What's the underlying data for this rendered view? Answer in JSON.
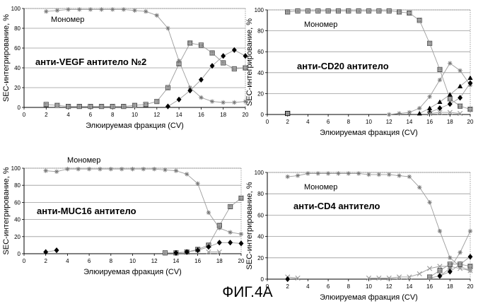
{
  "figure_caption": "ФИГ.4А",
  "chart_data": [
    {
      "type": "line",
      "title": "анти-VEGF антитело №2",
      "xlabel": "Элюируемая фракция (CV)",
      "ylabel": "SEC-интегрирование, %",
      "xlim": [
        0,
        20
      ],
      "ylim": [
        0,
        100
      ],
      "xticks": [
        0,
        2,
        4,
        6,
        8,
        10,
        12,
        14,
        16,
        18,
        20
      ],
      "yticks": [
        0,
        20,
        40,
        60,
        80,
        100
      ],
      "annotations": [
        "Мономер"
      ],
      "grid": true,
      "series": [
        {
          "x": [
            2,
            3,
            4,
            5,
            6,
            7,
            8,
            9,
            10,
            11,
            12,
            13,
            14,
            15,
            16,
            17,
            18,
            19,
            20
          ],
          "y": [
            97,
            98,
            99,
            99,
            99,
            99,
            99,
            99,
            98,
            97,
            93,
            80,
            47,
            20,
            10,
            6,
            5,
            5,
            6
          ],
          "color": "#777777",
          "marker": "star"
        },
        {
          "x": [
            2,
            3,
            4,
            5,
            6,
            7,
            8,
            9,
            10,
            11,
            12,
            13,
            14,
            15,
            16,
            17,
            18,
            19,
            20
          ],
          "y": [
            3,
            2,
            1,
            1,
            1,
            1,
            1,
            1,
            2,
            3,
            6,
            20,
            44,
            65,
            63,
            55,
            45,
            39,
            40
          ],
          "color": "#555555",
          "marker": "hatch"
        },
        {
          "x": [
            13,
            14,
            15,
            16,
            17,
            18,
            19,
            20
          ],
          "y": [
            1,
            8,
            17,
            28,
            42,
            52,
            58,
            52
          ],
          "color": "#000000",
          "marker": "diamond"
        }
      ]
    },
    {
      "type": "line",
      "title": "анти-CD20 антитело",
      "xlabel": "Элюируемая фракция (CV)",
      "ylabel": "SEC-интегрирование, %",
      "xlim": [
        0,
        20
      ],
      "ylim": [
        0,
        100
      ],
      "xticks": [
        0,
        2,
        4,
        6,
        8,
        10,
        12,
        14,
        16,
        18,
        20
      ],
      "yticks": [
        0,
        20,
        40,
        60,
        80,
        100
      ],
      "annotations": [
        "Мономер"
      ],
      "grid": true,
      "series": [
        {
          "x": [
            2,
            3,
            4,
            5,
            6,
            7,
            8,
            9,
            10,
            11,
            12,
            13,
            14,
            15,
            16,
            17,
            18,
            19,
            20
          ],
          "y": [
            98,
            99,
            99,
            99,
            99,
            99,
            99,
            99,
            99,
            99,
            99,
            98,
            97,
            90,
            68,
            43,
            15,
            8,
            5
          ],
          "color": "#555555",
          "marker": "hatch"
        },
        {
          "x": [
            12,
            13,
            14,
            15,
            16,
            17,
            18,
            19,
            20
          ],
          "y": [
            0,
            1,
            2,
            6,
            17,
            33,
            49,
            42,
            28
          ],
          "color": "#777777",
          "marker": "star"
        },
        {
          "x": [
            15,
            16,
            17,
            18,
            19,
            20
          ],
          "y": [
            1,
            6,
            12,
            19,
            27,
            35
          ],
          "color": "#000000",
          "marker": "triangle"
        },
        {
          "x": [
            16,
            17,
            18,
            19,
            20
          ],
          "y": [
            2,
            6,
            10,
            16,
            30
          ],
          "color": "#000000",
          "marker": "diamond"
        },
        {
          "x": [
            16,
            17,
            18,
            19
          ],
          "y": [
            1,
            2,
            2,
            1
          ],
          "color": "#999999",
          "marker": "x"
        },
        {
          "x": [
            2
          ],
          "y": [
            1
          ],
          "color": "#000000",
          "marker": "hatch"
        }
      ]
    },
    {
      "type": "line",
      "title": "анти-MUC16 антитело",
      "xlabel": "Элюируемая фракция (CV)",
      "ylabel": "SEC-интегрирование, %",
      "xlim": [
        0,
        20
      ],
      "ylim": [
        0,
        100
      ],
      "xticks": [
        0,
        2,
        4,
        6,
        8,
        10,
        12,
        14,
        16,
        18,
        20
      ],
      "yticks": [
        0,
        20,
        40,
        60,
        80,
        100
      ],
      "annotations": [
        "Мономер"
      ],
      "grid": true,
      "series": [
        {
          "x": [
            2,
            3,
            4,
            5,
            6,
            7,
            8,
            9,
            10,
            11,
            12,
            13,
            14,
            15,
            16,
            17,
            18,
            19,
            20
          ],
          "y": [
            97,
            96,
            99,
            99,
            99,
            99,
            99,
            99,
            99,
            99,
            99,
            98,
            97,
            93,
            82,
            48,
            30,
            25,
            23
          ],
          "color": "#777777",
          "marker": "star"
        },
        {
          "x": [
            13,
            14,
            15,
            16,
            17,
            18,
            19,
            20
          ],
          "y": [
            1,
            1,
            2,
            5,
            10,
            33,
            55,
            65
          ],
          "color": "#555555",
          "marker": "hatch"
        },
        {
          "x": [
            2,
            3
          ],
          "y": [
            2,
            4
          ],
          "color": "#000000",
          "marker": "diamond"
        },
        {
          "x": [
            14,
            15,
            16,
            17,
            18,
            19,
            20
          ],
          "y": [
            1,
            2,
            4,
            8,
            13,
            13,
            12
          ],
          "color": "#000000",
          "marker": "diamond"
        },
        {
          "x": [
            17,
            18
          ],
          "y": [
            2,
            2
          ],
          "color": "#999999",
          "marker": "x"
        }
      ]
    },
    {
      "type": "line",
      "title": "анти-CD4 антитело",
      "xlabel": "Элюируемая фракция (CV)",
      "ylabel": "SEC-интегрирование, %",
      "xlim": [
        0,
        20
      ],
      "ylim": [
        0,
        100
      ],
      "xticks": [
        0,
        2,
        4,
        6,
        8,
        10,
        12,
        14,
        16,
        18,
        20
      ],
      "yticks": [
        0,
        20,
        40,
        60,
        80,
        100
      ],
      "annotations": [
        "Мономер"
      ],
      "grid": true,
      "series": [
        {
          "x": [
            2,
            3,
            4,
            5,
            6,
            7,
            8,
            9,
            10,
            11,
            12,
            13,
            14,
            15,
            16,
            17,
            18,
            19,
            20
          ],
          "y": [
            96,
            97,
            99,
            99,
            99,
            99,
            99,
            99,
            98,
            98,
            98,
            97,
            96,
            86,
            72,
            45,
            20,
            12,
            8
          ],
          "color": "#777777",
          "marker": "star"
        },
        {
          "x": [
            2,
            3
          ],
          "y": [
            2,
            1
          ],
          "color": "#999999",
          "marker": "x"
        },
        {
          "x": [
            10,
            11,
            12,
            13,
            14,
            15,
            16,
            17,
            18,
            19,
            20
          ],
          "y": [
            1,
            1,
            1,
            2,
            2,
            5,
            10,
            12,
            12,
            10,
            8
          ],
          "color": "#999999",
          "marker": "x"
        },
        {
          "x": [
            16,
            17,
            18,
            19,
            20
          ],
          "y": [
            1,
            3,
            10,
            25,
            45
          ],
          "color": "#777777",
          "marker": "star"
        },
        {
          "x": [
            2
          ],
          "y": [
            0
          ],
          "color": "#000000",
          "marker": "diamond"
        },
        {
          "x": [
            17,
            18,
            19,
            20
          ],
          "y": [
            3,
            7,
            14,
            21
          ],
          "color": "#000000",
          "marker": "diamond"
        },
        {
          "x": [
            16,
            17,
            18,
            19,
            20
          ],
          "y": [
            2,
            8,
            14,
            14,
            12
          ],
          "color": "#555555",
          "marker": "hatch"
        }
      ]
    }
  ]
}
